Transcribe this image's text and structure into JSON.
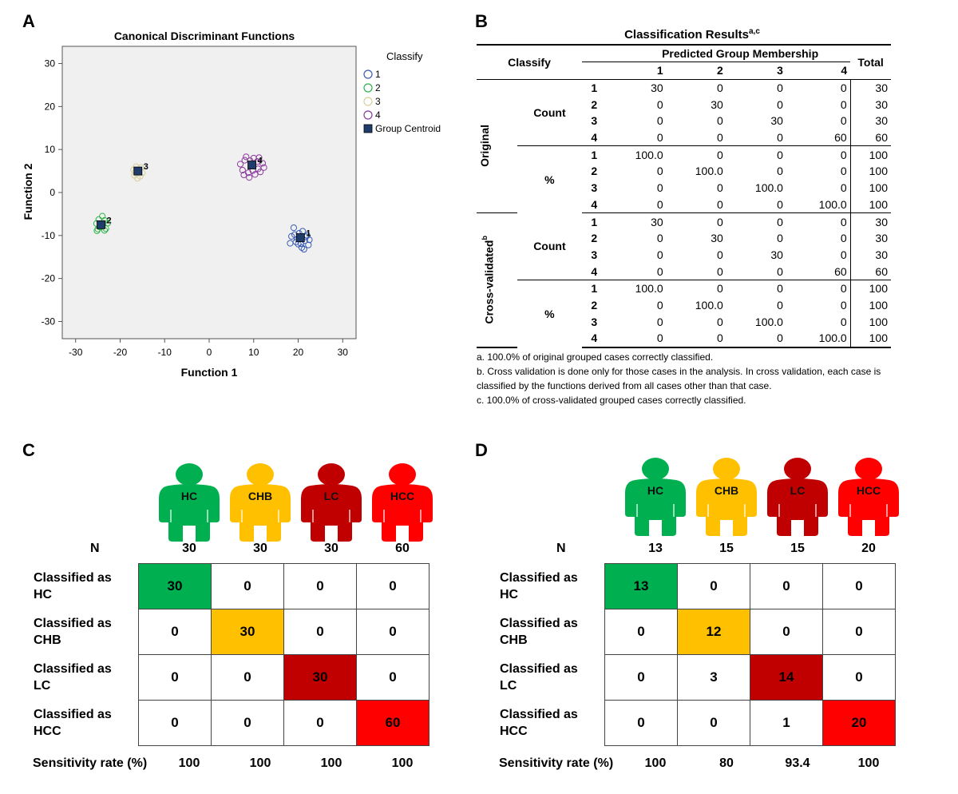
{
  "panels": {
    "a": "A",
    "b": "B",
    "c": "C",
    "d": "D"
  },
  "panel_a": {
    "title": "Canonical Discriminant Functions",
    "legend_title": "Classify",
    "legend": [
      {
        "label": "1",
        "color": "#3a5bb5",
        "shape": "circle-open"
      },
      {
        "label": "2",
        "color": "#2db34a",
        "shape": "circle-open"
      },
      {
        "label": "3",
        "color": "#d8cf9a",
        "shape": "circle-open"
      },
      {
        "label": "4",
        "color": "#8a3a9c",
        "shape": "circle-open"
      },
      {
        "label": "Group Centroid",
        "color": "#1f3c6b",
        "shape": "square-filled"
      }
    ]
  },
  "chart_data": [
    {
      "type": "scatter",
      "title": "Canonical Discriminant Functions",
      "xlabel": "Function 1",
      "ylabel": "Function 2",
      "xlim": [
        -33,
        33
      ],
      "ylim": [
        -34,
        34
      ],
      "xticks": [
        -30,
        -20,
        -10,
        0,
        10,
        20,
        30
      ],
      "yticks": [
        -30,
        -20,
        -10,
        0,
        10,
        20,
        30
      ],
      "grid": false,
      "legend_placement": "right",
      "series": [
        {
          "name": "1",
          "color": "#3a5bb5",
          "points": [
            [
              20.5,
              -10.5
            ],
            [
              19.2,
              -9.8
            ],
            [
              21.5,
              -11.2
            ],
            [
              20,
              -12
            ],
            [
              22,
              -10
            ],
            [
              19.5,
              -11.5
            ],
            [
              21,
              -9
            ],
            [
              20.8,
              -12.8
            ],
            [
              18.5,
              -10.2
            ],
            [
              22.5,
              -11
            ],
            [
              19,
              -8.2
            ],
            [
              21.3,
              -13.2
            ],
            [
              20.2,
              -9.5
            ],
            [
              18.2,
              -11.8
            ],
            [
              22.3,
              -12.2
            ],
            [
              19.8,
              -10.8
            ],
            [
              21.7,
              -10.3
            ],
            [
              20.6,
              -11.9
            ]
          ]
        },
        {
          "name": "2",
          "color": "#2db34a",
          "points": [
            [
              -24.3,
              -7.5
            ],
            [
              -25,
              -8.5
            ],
            [
              -23.5,
              -6.5
            ],
            [
              -24.8,
              -6.3
            ],
            [
              -23.2,
              -8.4
            ],
            [
              -25.3,
              -7.2
            ],
            [
              -24,
              -5.5
            ],
            [
              -23.5,
              -8.8
            ],
            [
              -25.2,
              -8.9
            ],
            [
              -22.8,
              -7.1
            ],
            [
              -24.6,
              -8
            ],
            [
              -23.8,
              -7.2
            ]
          ]
        },
        {
          "name": "3",
          "color": "#d8cf9a",
          "points": [
            [
              -16,
              5
            ],
            [
              -16.8,
              4
            ],
            [
              -15.3,
              5.8
            ],
            [
              -16.4,
              6
            ],
            [
              -15.5,
              3.8
            ],
            [
              -17,
              5.3
            ],
            [
              -16.1,
              3.3
            ],
            [
              -15,
              4.6
            ],
            [
              -16.6,
              4.7
            ]
          ]
        },
        {
          "name": "4",
          "color": "#8a3a9c",
          "points": [
            [
              9.5,
              6.5
            ],
            [
              8,
              7.5
            ],
            [
              11,
              5.5
            ],
            [
              10,
              8
            ],
            [
              7.5,
              5.2
            ],
            [
              12,
              6.8
            ],
            [
              8.8,
              4.6
            ],
            [
              10.8,
              7.2
            ],
            [
              9,
              3.5
            ],
            [
              11.5,
              4.8
            ],
            [
              7,
              6.6
            ],
            [
              12.3,
              5.8
            ],
            [
              9.8,
              5.1
            ],
            [
              8.3,
              8.3
            ],
            [
              10.3,
              4.2
            ],
            [
              7.8,
              4.1
            ],
            [
              11.2,
              8.1
            ],
            [
              9.2,
              7.4
            ]
          ]
        }
      ],
      "centroids": [
        {
          "label": "1",
          "x": 20.5,
          "y": -10.5
        },
        {
          "label": "2",
          "x": -24.3,
          "y": -7.5
        },
        {
          "label": "3",
          "x": -16,
          "y": 5
        },
        {
          "label": "4",
          "x": 9.6,
          "y": 6.4
        }
      ]
    }
  ],
  "panel_b": {
    "title": "Classification Results",
    "title_sup": "a,c",
    "col_classify": "Classify",
    "col_predicted": "Predicted Group Membership",
    "col_total": "Total",
    "group_cols": [
      "1",
      "2",
      "3",
      "4"
    ],
    "original_label": "Original",
    "cross_label": "Cross-validated",
    "cross_sup": "b",
    "count_label": "Count",
    "pct_label": "%",
    "original_count": [
      [
        "1",
        "30",
        "0",
        "0",
        "0",
        "30"
      ],
      [
        "2",
        "0",
        "30",
        "0",
        "0",
        "30"
      ],
      [
        "3",
        "0",
        "0",
        "30",
        "0",
        "30"
      ],
      [
        "4",
        "0",
        "0",
        "0",
        "60",
        "60"
      ]
    ],
    "original_pct": [
      [
        "1",
        "100.0",
        "0",
        "0",
        "0",
        "100"
      ],
      [
        "2",
        "0",
        "100.0",
        "0",
        "0",
        "100"
      ],
      [
        "3",
        "0",
        "0",
        "100.0",
        "0",
        "100"
      ],
      [
        "4",
        "0",
        "0",
        "0",
        "100.0",
        "100"
      ]
    ],
    "cross_count": [
      [
        "1",
        "30",
        "0",
        "0",
        "0",
        "30"
      ],
      [
        "2",
        "0",
        "30",
        "0",
        "0",
        "30"
      ],
      [
        "3",
        "0",
        "0",
        "30",
        "0",
        "30"
      ],
      [
        "4",
        "0",
        "0",
        "0",
        "60",
        "60"
      ]
    ],
    "cross_pct": [
      [
        "1",
        "100.0",
        "0",
        "0",
        "0",
        "100"
      ],
      [
        "2",
        "0",
        "100.0",
        "0",
        "0",
        "100"
      ],
      [
        "3",
        "0",
        "0",
        "100.0",
        "0",
        "100"
      ],
      [
        "4",
        "0",
        "0",
        "0",
        "100.0",
        "100"
      ]
    ],
    "notes": [
      "a. 100.0% of original grouped cases correctly classified.",
      "b. Cross validation is done only for those cases in the analysis. In cross validation, each case is classified by the functions derived from all cases other than that case.",
      "c. 100.0% of cross-validated grouped cases correctly classified."
    ]
  },
  "groups": [
    {
      "label": "HC",
      "color": "#00b050"
    },
    {
      "label": "CHB",
      "color": "#ffc000"
    },
    {
      "label": "LC",
      "color": "#c00000"
    },
    {
      "label": "HCC",
      "color": "#ff0000"
    }
  ],
  "panel_c": {
    "n_label": "N",
    "n": [
      "30",
      "30",
      "30",
      "60"
    ],
    "row_labels": [
      [
        "Classified as",
        "HC"
      ],
      [
        "Classified as",
        "CHB"
      ],
      [
        "Classified as",
        "LC"
      ],
      [
        "Classified as",
        "HCC"
      ]
    ],
    "matrix": [
      [
        "30",
        "0",
        "0",
        "0"
      ],
      [
        "0",
        "30",
        "0",
        "0"
      ],
      [
        "0",
        "0",
        "30",
        "0"
      ],
      [
        "0",
        "0",
        "0",
        "60"
      ]
    ],
    "sens_label": "Sensitivity rate (%)",
    "sensitivity": [
      "100",
      "100",
      "100",
      "100"
    ]
  },
  "panel_d": {
    "n_label": "N",
    "n": [
      "13",
      "15",
      "15",
      "20"
    ],
    "row_labels": [
      [
        "Classified as",
        "HC"
      ],
      [
        "Classified as",
        "CHB"
      ],
      [
        "Classified as",
        "LC"
      ],
      [
        "Classified as",
        "HCC"
      ]
    ],
    "matrix": [
      [
        "13",
        "0",
        "0",
        "0"
      ],
      [
        "0",
        "12",
        "0",
        "0"
      ],
      [
        "0",
        "3",
        "14",
        "0"
      ],
      [
        "0",
        "0",
        "1",
        "20"
      ]
    ],
    "sens_label": "Sensitivity rate (%)",
    "sensitivity": [
      "100",
      "80",
      "93.4",
      "100"
    ]
  }
}
